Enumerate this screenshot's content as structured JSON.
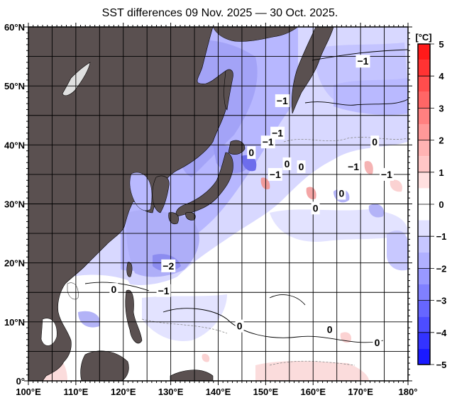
{
  "title": "SST differences 09 Nov. 2025 — 30 Oct. 2025.",
  "map": {
    "lon_range": [
      100,
      180
    ],
    "lat_range": [
      0,
      60
    ],
    "grid_step_deg": 5,
    "land_color": "#5a5050",
    "ocean_base_color": "#ffffff",
    "x_ticks": [
      "100°E",
      "110°E",
      "120°E",
      "130°E",
      "140°E",
      "150°E",
      "160°E",
      "170°E",
      "180°"
    ],
    "y_ticks": [
      "60°N",
      "50°N",
      "40°N",
      "30°N",
      "20°N",
      "10°N",
      "0°"
    ],
    "contour_labels": [
      {
        "text": "-1",
        "lon": 170.5,
        "lat": 54.2
      },
      {
        "text": "-1",
        "lon": 153.5,
        "lat": 47.5
      },
      {
        "text": "-1",
        "lon": 152.5,
        "lat": 42.0
      },
      {
        "text": "-1",
        "lon": 150.5,
        "lat": 40.5
      },
      {
        "text": "0",
        "lon": 147.0,
        "lat": 38.7
      },
      {
        "text": "0",
        "lon": 154.5,
        "lat": 36.8
      },
      {
        "text": "0",
        "lon": 157.5,
        "lat": 36.3
      },
      {
        "text": "-1",
        "lon": 152.0,
        "lat": 35.0
      },
      {
        "text": "-1",
        "lon": 168.5,
        "lat": 36.3
      },
      {
        "text": "-1",
        "lon": 175.5,
        "lat": 35.0
      },
      {
        "text": "0",
        "lon": 173.0,
        "lat": 40.5
      },
      {
        "text": "0",
        "lon": 166.0,
        "lat": 31.8
      },
      {
        "text": "0",
        "lon": 160.5,
        "lat": 29.3
      },
      {
        "text": "-2",
        "lon": 129.5,
        "lat": 19.5
      },
      {
        "text": "0",
        "lon": 118.0,
        "lat": 15.5
      },
      {
        "text": "-1",
        "lon": 128.5,
        "lat": 15.3
      },
      {
        "text": "0",
        "lon": 144.5,
        "lat": 9.3
      },
      {
        "text": "0",
        "lon": 163.5,
        "lat": 8.7
      },
      {
        "text": "0",
        "lon": 173.5,
        "lat": 6.5
      }
    ]
  },
  "colorbar": {
    "unit": "[°C]",
    "ticks": [
      "5",
      "4",
      "3",
      "2",
      "1",
      "0",
      "-1",
      "-2",
      "-3",
      "-4",
      "-5"
    ],
    "levels": [
      {
        "from": 4.5,
        "to": 5.0,
        "color": "#ff1a1a"
      },
      {
        "from": 4.0,
        "to": 4.5,
        "color": "#ff3333"
      },
      {
        "from": 3.5,
        "to": 4.0,
        "color": "#ff4d4d"
      },
      {
        "from": 3.0,
        "to": 3.5,
        "color": "#ff6666"
      },
      {
        "from": 2.5,
        "to": 3.0,
        "color": "#ff8080"
      },
      {
        "from": 2.0,
        "to": 2.5,
        "color": "#ff9999"
      },
      {
        "from": 1.5,
        "to": 2.0,
        "color": "#ffb3b3"
      },
      {
        "from": 1.0,
        "to": 1.5,
        "color": "#ffc6c6"
      },
      {
        "from": 0.5,
        "to": 1.0,
        "color": "#ffe0e0"
      },
      {
        "from": 0.0,
        "to": 0.5,
        "color": "#ffffff"
      },
      {
        "from": -0.5,
        "to": 0.0,
        "color": "#ffffff"
      },
      {
        "from": -1.0,
        "to": -0.5,
        "color": "#e0e0ff"
      },
      {
        "from": -1.5,
        "to": -1.0,
        "color": "#c6c6ff"
      },
      {
        "from": -2.0,
        "to": -1.5,
        "color": "#b0b0ff"
      },
      {
        "from": -2.5,
        "to": -2.0,
        "color": "#9999ff"
      },
      {
        "from": -3.0,
        "to": -2.5,
        "color": "#8080ff"
      },
      {
        "from": -3.5,
        "to": -3.0,
        "color": "#6666ff"
      },
      {
        "from": -4.0,
        "to": -3.5,
        "color": "#4d4dff"
      },
      {
        "from": -4.5,
        "to": -4.0,
        "color": "#3333ff"
      },
      {
        "from": -5.0,
        "to": -4.5,
        "color": "#1a1aff"
      }
    ]
  }
}
